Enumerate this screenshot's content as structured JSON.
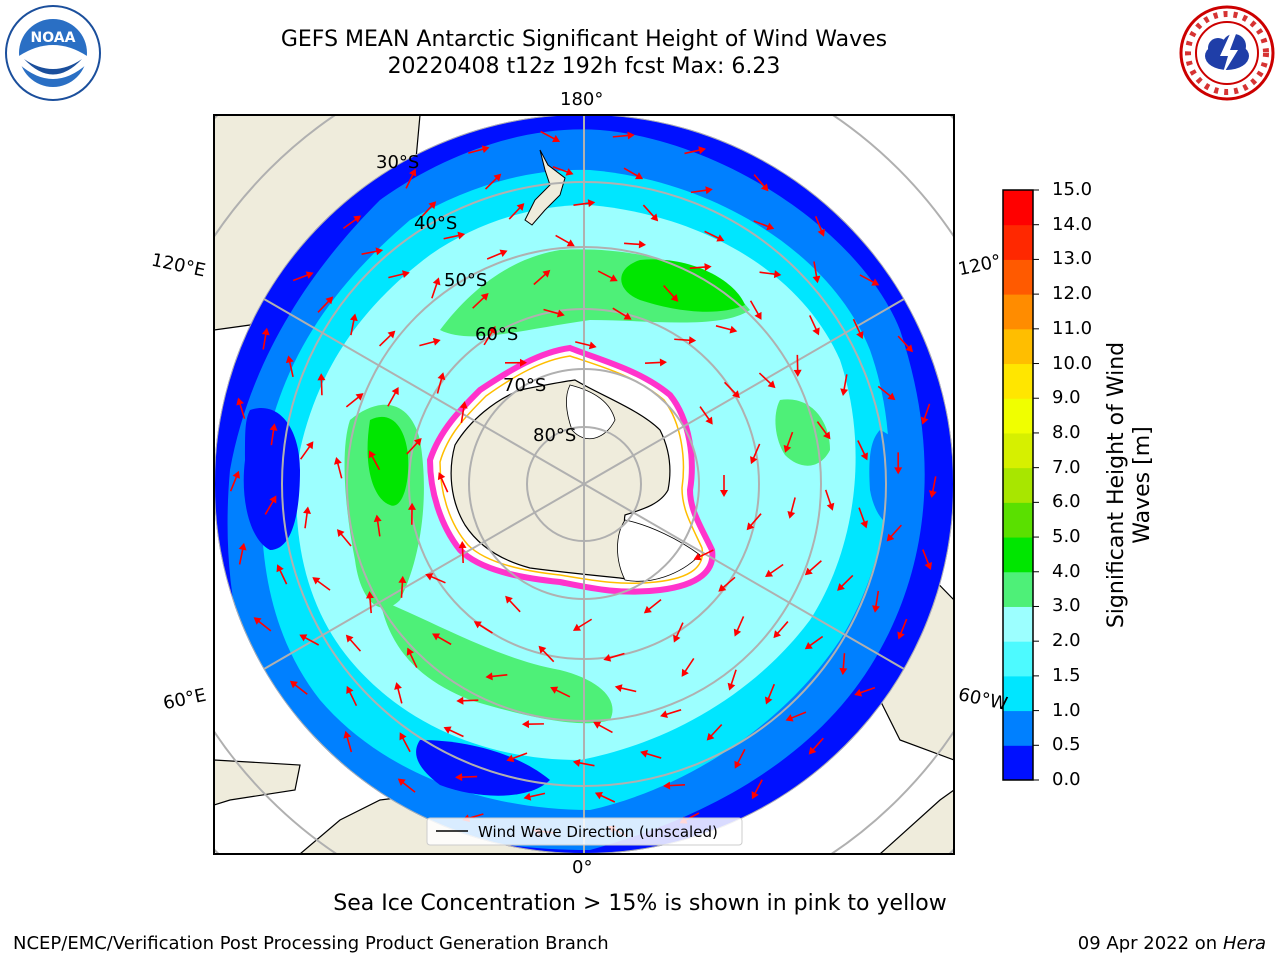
{
  "title": {
    "line1": "GEFS MEAN Antarctic Significant Height of Wind Waves",
    "line2": "20220408 t12z 192h fcst   Max: 6.23"
  },
  "longitude_labels": {
    "top": "180°",
    "bottom": "0°",
    "upper_left": "120°E",
    "upper_right": "120°",
    "lower_left": "60°E",
    "lower_right": "60°W"
  },
  "latitude_labels": [
    "30°S",
    "40°S",
    "50°S",
    "60°S",
    "70°S",
    "80°S"
  ],
  "legend_label": "Wind Wave Direction (unscaled)",
  "colorbar": {
    "label": "Significant Height of Wind Waves [m]",
    "ticks": [
      "0.0",
      "0.5",
      "1.0",
      "1.5",
      "2.0",
      "3.0",
      "4.0",
      "5.0",
      "6.0",
      "7.0",
      "8.0",
      "9.0",
      "10.0",
      "11.0",
      "12.0",
      "13.0",
      "14.0",
      "15.0"
    ],
    "colors": [
      "#0010ff",
      "#0080ff",
      "#00e6ff",
      "#4dfaff",
      "#9cffff",
      "#4ef078",
      "#00e600",
      "#5ae000",
      "#a8e600",
      "#d6f000",
      "#f0ff00",
      "#ffe600",
      "#ffbe00",
      "#ff8c00",
      "#ff5a00",
      "#ff2800",
      "#ff0000"
    ]
  },
  "note": "Sea Ice Concentration > 15% is shown in pink to yellow",
  "footer": {
    "left": "NCEP/EMC/Verification Post Processing Product Generation Branch",
    "date": "09 Apr 2022 on",
    "machine": "Hera"
  },
  "logos": {
    "left": "noaa-logo",
    "right": "nws-logo"
  },
  "map_colors": {
    "land": "#efecdc",
    "ice": "#ffffff",
    "ice_edge": "#ff33cc",
    "arrows": "#ff0000",
    "grid": "#b0b0b0"
  }
}
